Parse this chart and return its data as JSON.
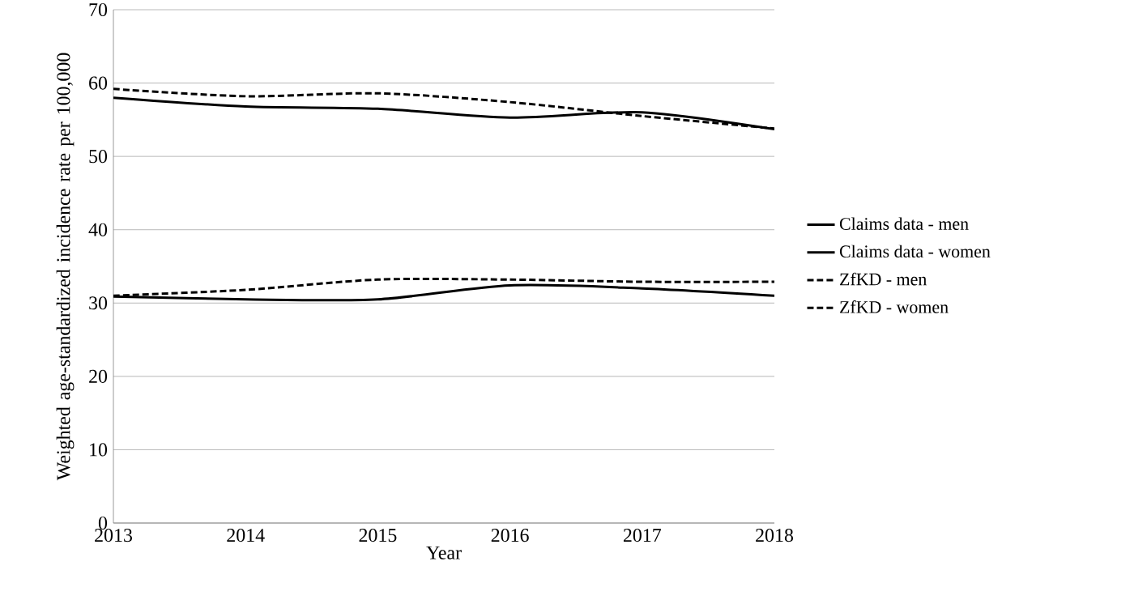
{
  "chart_data": {
    "type": "line",
    "xlabel": "Year",
    "ylabel": "Weighted age-standardized incidence rate per 100,000",
    "x": [
      2013,
      2014,
      2015,
      2016,
      2017,
      2018
    ],
    "xlim": [
      2013,
      2018
    ],
    "xticks": [
      2013,
      2014,
      2015,
      2016,
      2017,
      2018
    ],
    "ylim": [
      0,
      70
    ],
    "yticks": [
      0,
      10,
      20,
      30,
      40,
      50,
      60,
      70
    ],
    "grid": "y",
    "legend": "right",
    "marker": "none",
    "series": [
      {
        "name": "Claims data - men",
        "color": "#000000",
        "line_style": "solid",
        "values": [
          58.0,
          56.8,
          56.5,
          55.3,
          56.0,
          53.7
        ]
      },
      {
        "name": "Claims data - women",
        "color": "#000000",
        "line_style": "solid",
        "values": [
          30.9,
          30.5,
          30.5,
          32.4,
          32.0,
          31.0
        ]
      },
      {
        "name": "ZfKD - men",
        "color": "#000000",
        "line_style": "dashed",
        "values": [
          59.2,
          58.2,
          58.6,
          57.4,
          55.5,
          53.8
        ]
      },
      {
        "name": "ZfKD - women",
        "color": "#000000",
        "line_style": "dashed",
        "values": [
          31.0,
          31.8,
          33.2,
          33.2,
          32.9,
          32.9
        ]
      }
    ]
  }
}
